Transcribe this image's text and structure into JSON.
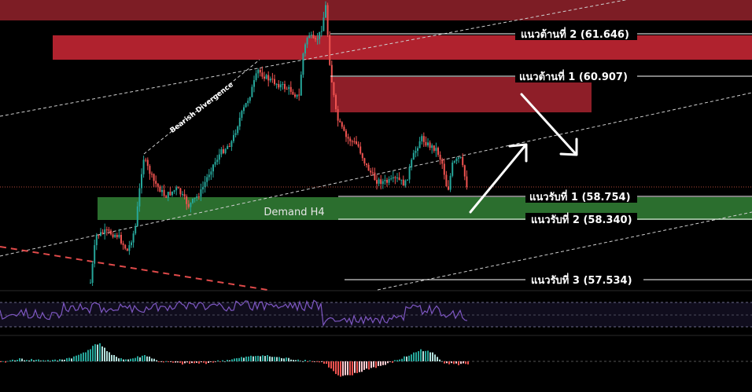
{
  "chart_data": {
    "type": "candlestick",
    "zones": [
      {
        "name": "resistance-zone-top",
        "color": "#7d1d25",
        "label": ""
      },
      {
        "name": "resistance-zone-2",
        "color": "#b0222e",
        "label": ""
      },
      {
        "name": "resistance-zone-1",
        "color": "#8e1e28",
        "label": ""
      },
      {
        "name": "demand-zone",
        "color": "#2b6e2e",
        "label": "Demand H4"
      }
    ],
    "levels": [
      {
        "key": "r2",
        "label": "แนวต้านที่ 2 (61.646)",
        "value": 61.646
      },
      {
        "key": "r1",
        "label": "แนวต้านที่ 1 (60.907)",
        "value": 60.907
      },
      {
        "key": "s1",
        "label": "แนวรับที่ 1 (58.754)",
        "value": 58.754
      },
      {
        "key": "s2",
        "label": "แนวรับที่ 2 (58.340)",
        "value": 58.34
      },
      {
        "key": "s3",
        "label": "แนวรับที่ 3  (57.534)",
        "value": 57.534
      }
    ],
    "annotations": {
      "divergence": "Bearish Divergence"
    },
    "colors": {
      "up": "#26a69a",
      "down": "#ef5350",
      "background": "#000000",
      "rsi_line": "#7e57c2",
      "trend_dashed": "#cfcfcf",
      "red_dashed": "#e04a4a",
      "arrow": "#ffffff"
    }
  }
}
